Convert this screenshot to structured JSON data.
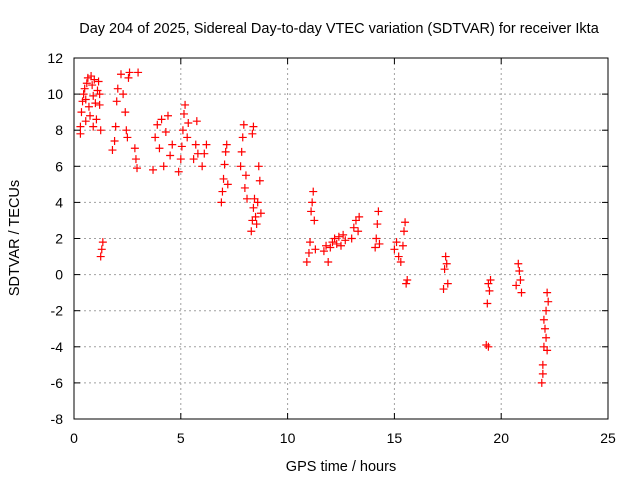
{
  "chart_data": {
    "type": "scatter",
    "title": "Day 204 of 2025, Sidereal Day-to-day VTEC variation (SDTVAR) for receiver Ikta",
    "xlabel": "GPS time / hours",
    "ylabel": "SDTVAR / TECUs",
    "xlim": [
      0,
      25
    ],
    "ylim": [
      -8,
      12
    ],
    "xticks": [
      0,
      5,
      10,
      15,
      20,
      25
    ],
    "yticks": [
      -8,
      -6,
      -4,
      -2,
      0,
      2,
      4,
      6,
      8,
      10,
      12
    ],
    "xtick_labels": [
      "0",
      "5",
      "10",
      "15",
      "20",
      "25"
    ],
    "ytick_labels": [
      "-8",
      "-6",
      "-4",
      "-2",
      "0",
      "2",
      "4",
      "6",
      "8",
      "10",
      "12"
    ],
    "grid": true,
    "marker": "+",
    "series": [
      {
        "name": "SDTVAR",
        "color": "#ff0000",
        "points": [
          [
            0.3,
            7.8
          ],
          [
            0.3,
            8.2
          ],
          [
            0.35,
            9.0
          ],
          [
            0.4,
            9.6
          ],
          [
            0.45,
            10.0
          ],
          [
            0.5,
            10.3
          ],
          [
            0.55,
            9.7
          ],
          [
            0.6,
            10.6
          ],
          [
            0.65,
            10.9
          ],
          [
            0.7,
            9.3
          ],
          [
            0.75,
            8.8
          ],
          [
            0.8,
            11.0
          ],
          [
            0.85,
            10.5
          ],
          [
            0.9,
            9.9
          ],
          [
            0.95,
            10.8
          ],
          [
            1.0,
            9.5
          ],
          [
            1.05,
            8.6
          ],
          [
            1.1,
            10.2
          ],
          [
            1.15,
            10.7
          ],
          [
            1.2,
            9.4
          ],
          [
            1.25,
            8.0
          ],
          [
            0.55,
            8.5
          ],
          [
            0.9,
            8.2
          ],
          [
            1.2,
            10.0
          ],
          [
            1.25,
            1.0
          ],
          [
            1.3,
            1.4
          ],
          [
            1.35,
            1.8
          ],
          [
            1.8,
            6.9
          ],
          [
            1.9,
            7.4
          ],
          [
            1.95,
            8.2
          ],
          [
            2.0,
            9.6
          ],
          [
            2.05,
            10.3
          ],
          [
            2.2,
            11.1
          ],
          [
            2.3,
            10.0
          ],
          [
            2.4,
            9.0
          ],
          [
            2.45,
            8.0
          ],
          [
            2.5,
            7.6
          ],
          [
            2.55,
            10.9
          ],
          [
            2.6,
            11.2
          ],
          [
            2.85,
            7.0
          ],
          [
            2.9,
            6.4
          ],
          [
            2.95,
            5.9
          ],
          [
            3.0,
            11.2
          ],
          [
            3.7,
            5.8
          ],
          [
            3.8,
            7.6
          ],
          [
            3.9,
            8.3
          ],
          [
            4.0,
            7.0
          ],
          [
            4.1,
            8.6
          ],
          [
            4.2,
            6.0
          ],
          [
            4.3,
            7.9
          ],
          [
            4.4,
            8.8
          ],
          [
            4.5,
            6.6
          ],
          [
            4.6,
            7.2
          ],
          [
            4.9,
            5.7
          ],
          [
            5.0,
            6.4
          ],
          [
            5.05,
            7.1
          ],
          [
            5.1,
            8.0
          ],
          [
            5.15,
            8.9
          ],
          [
            5.2,
            9.4
          ],
          [
            5.3,
            7.6
          ],
          [
            5.35,
            8.4
          ],
          [
            5.6,
            6.4
          ],
          [
            5.7,
            7.2
          ],
          [
            5.75,
            8.5
          ],
          [
            5.8,
            6.7
          ],
          [
            6.0,
            6.0
          ],
          [
            6.1,
            6.7
          ],
          [
            6.2,
            7.2
          ],
          [
            6.9,
            4.0
          ],
          [
            6.95,
            4.6
          ],
          [
            7.0,
            5.3
          ],
          [
            7.05,
            6.1
          ],
          [
            7.1,
            6.8
          ],
          [
            7.15,
            7.2
          ],
          [
            7.2,
            5.0
          ],
          [
            7.8,
            6.0
          ],
          [
            7.85,
            6.8
          ],
          [
            7.9,
            7.6
          ],
          [
            7.95,
            8.3
          ],
          [
            8.0,
            4.8
          ],
          [
            8.05,
            5.5
          ],
          [
            8.1,
            4.2
          ],
          [
            8.3,
            2.4
          ],
          [
            8.35,
            3.0
          ],
          [
            8.4,
            3.7
          ],
          [
            8.45,
            4.2
          ],
          [
            8.5,
            3.2
          ],
          [
            8.55,
            2.8
          ],
          [
            8.6,
            4.0
          ],
          [
            8.65,
            6.0
          ],
          [
            8.7,
            5.2
          ],
          [
            8.75,
            3.4
          ],
          [
            8.35,
            7.8
          ],
          [
            8.4,
            8.2
          ],
          [
            10.9,
            0.7
          ],
          [
            11.0,
            1.2
          ],
          [
            11.05,
            1.8
          ],
          [
            11.1,
            3.5
          ],
          [
            11.15,
            4.0
          ],
          [
            11.2,
            4.6
          ],
          [
            11.25,
            3.0
          ],
          [
            11.3,
            1.4
          ],
          [
            11.7,
            1.3
          ],
          [
            11.8,
            1.6
          ],
          [
            11.9,
            0.7
          ],
          [
            12.0,
            1.5
          ],
          [
            12.1,
            1.8
          ],
          [
            12.2,
            2.0
          ],
          [
            12.3,
            1.7
          ],
          [
            12.4,
            2.1
          ],
          [
            12.5,
            1.6
          ],
          [
            12.6,
            2.2
          ],
          [
            12.7,
            1.9
          ],
          [
            13.0,
            2.0
          ],
          [
            13.1,
            2.6
          ],
          [
            13.2,
            3.0
          ],
          [
            13.3,
            2.4
          ],
          [
            13.35,
            3.2
          ],
          [
            14.1,
            1.5
          ],
          [
            14.15,
            2.0
          ],
          [
            14.2,
            2.8
          ],
          [
            14.25,
            3.5
          ],
          [
            14.3,
            1.7
          ],
          [
            15.0,
            1.4
          ],
          [
            15.1,
            1.8
          ],
          [
            15.2,
            1.0
          ],
          [
            15.3,
            0.7
          ],
          [
            15.4,
            1.6
          ],
          [
            15.45,
            2.4
          ],
          [
            15.5,
            2.9
          ],
          [
            15.55,
            -0.5
          ],
          [
            15.6,
            -0.3
          ],
          [
            17.3,
            -0.8
          ],
          [
            17.35,
            0.3
          ],
          [
            17.4,
            1.0
          ],
          [
            17.45,
            0.6
          ],
          [
            17.5,
            -0.5
          ],
          [
            19.3,
            -3.9
          ],
          [
            19.35,
            -1.6
          ],
          [
            19.4,
            -0.5
          ],
          [
            19.45,
            -0.9
          ],
          [
            19.5,
            -0.3
          ],
          [
            19.4,
            -4.0
          ],
          [
            20.7,
            -0.6
          ],
          [
            20.8,
            0.6
          ],
          [
            20.85,
            0.2
          ],
          [
            20.9,
            -0.3
          ],
          [
            20.95,
            -1.0
          ],
          [
            21.9,
            -6.0
          ],
          [
            21.95,
            -5.0
          ],
          [
            22.0,
            -4.0
          ],
          [
            22.05,
            -3.0
          ],
          [
            22.1,
            -2.0
          ],
          [
            22.15,
            -1.0
          ],
          [
            22.2,
            -1.5
          ],
          [
            22.0,
            -2.5
          ],
          [
            22.1,
            -3.5
          ],
          [
            22.15,
            -4.2
          ],
          [
            21.95,
            -5.5
          ]
        ]
      }
    ]
  }
}
